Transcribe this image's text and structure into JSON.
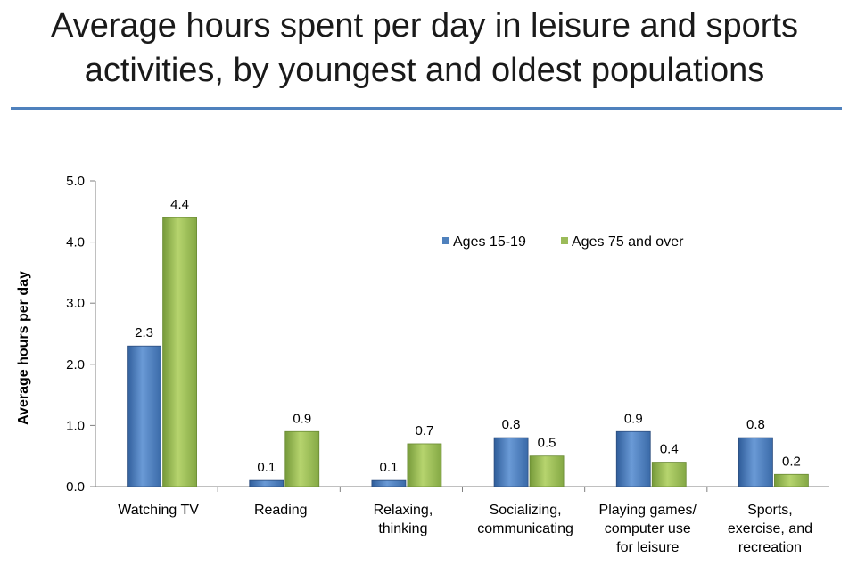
{
  "chart_data": {
    "type": "bar",
    "title": "Average hours spent per day in leisure and sports activities, by youngest and oldest populations",
    "title_lines": [
      "Average hours spent per day in leisure and sports",
      "activities, by youngest and oldest populations"
    ],
    "xlabel": "",
    "ylabel": "Average hours per day",
    "ylim": [
      0,
      5
    ],
    "yticks": [
      "0.0",
      "1.0",
      "2.0",
      "3.0",
      "4.0",
      "5.0"
    ],
    "grid": false,
    "legend_position": "top-right",
    "categories": [
      [
        "Watching TV"
      ],
      [
        "Reading"
      ],
      [
        "Relaxing,",
        "thinking"
      ],
      [
        "Socializing,",
        "communicating"
      ],
      [
        "Playing games/",
        "computer use",
        "for leisure"
      ],
      [
        "Sports,",
        "exercise, and",
        "recreation"
      ]
    ],
    "series": [
      {
        "name": "Ages 15-19",
        "color": "#4f81bd",
        "values": [
          2.3,
          0.1,
          0.1,
          0.8,
          0.9,
          0.8
        ],
        "labels": [
          "2.3",
          "0.1",
          "0.1",
          "0.8",
          "0.9",
          "0.8"
        ]
      },
      {
        "name": "Ages 75 and over",
        "color": "#9bbb59",
        "values": [
          4.4,
          0.9,
          0.7,
          0.5,
          0.4,
          0.2
        ],
        "labels": [
          "4.4",
          "0.9",
          "0.7",
          "0.5",
          "0.4",
          "0.2"
        ]
      }
    ]
  }
}
